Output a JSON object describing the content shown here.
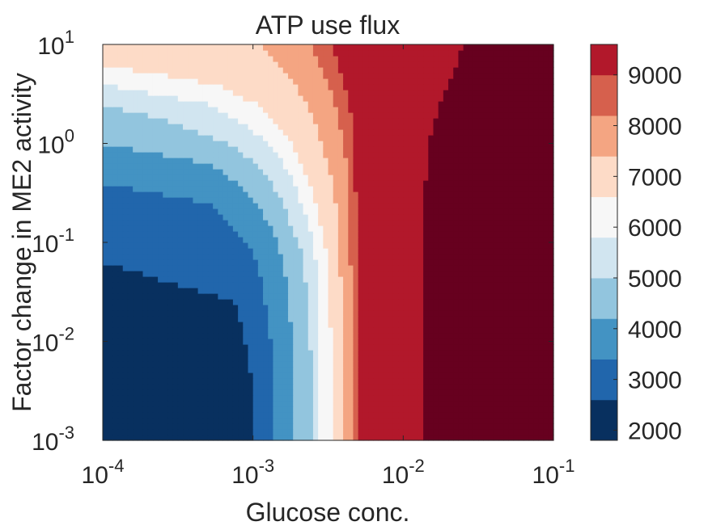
{
  "chart_data": {
    "type": "heatmap",
    "title": "ATP use flux",
    "xlabel": "Glucose conc.",
    "ylabel": "Factor change in ME2 activity",
    "x_scale": "log",
    "y_scale": "log",
    "xlim": [
      0.0001,
      0.1
    ],
    "ylim": [
      0.001,
      10
    ],
    "x_ticks": [
      {
        "value": 0.0001,
        "base": "10",
        "exp": "-4"
      },
      {
        "value": 0.001,
        "base": "10",
        "exp": "-3"
      },
      {
        "value": 0.01,
        "base": "10",
        "exp": "-2"
      },
      {
        "value": 0.1,
        "base": "10",
        "exp": "-1"
      }
    ],
    "y_ticks": [
      {
        "value": 0.001,
        "base": "10",
        "exp": "-3"
      },
      {
        "value": 0.01,
        "base": "10",
        "exp": "-2"
      },
      {
        "value": 0.1,
        "base": "10",
        "exp": "-1"
      },
      {
        "value": 1,
        "base": "10",
        "exp": "0"
      },
      {
        "value": 10,
        "base": "10",
        "exp": "1"
      }
    ],
    "colorbar": {
      "range": [
        1800,
        9600
      ],
      "ticks": [
        "2000",
        "3000",
        "4000",
        "5000",
        "6000",
        "7000",
        "8000",
        "9000"
      ],
      "tick_values": [
        2000,
        3000,
        4000,
        5000,
        6000,
        7000,
        8000,
        9000
      ],
      "levels": [
        {
          "min": 1800,
          "max": 2600,
          "color": "#08305f"
        },
        {
          "min": 2600,
          "max": 3400,
          "color": "#2166ac"
        },
        {
          "min": 3400,
          "max": 4200,
          "color": "#4393c3"
        },
        {
          "min": 4200,
          "max": 5000,
          "color": "#92c5de"
        },
        {
          "min": 5000,
          "max": 5800,
          "color": "#d1e5f0"
        },
        {
          "min": 5800,
          "max": 6600,
          "color": "#f7f7f7"
        },
        {
          "min": 6600,
          "max": 7400,
          "color": "#fddbc7"
        },
        {
          "min": 7400,
          "max": 8200,
          "color": "#f4a582"
        },
        {
          "min": 8200,
          "max": 9000,
          "color": "#d6604d"
        },
        {
          "min": 9000,
          "max": 9600,
          "color": "#b2182b"
        }
      ]
    },
    "level_colors": [
      "#08305f",
      "#2166ac",
      "#4393c3",
      "#92c5de",
      "#d1e5f0",
      "#f7f7f7",
      "#fddbc7",
      "#f4a582",
      "#d6604d",
      "#b2182b",
      "#67001f"
    ],
    "regions_note_levels": "level index 0..10 from dark blue (~2000) to dark red (~9500)",
    "band_boundaries": {
      "description": "Glucose concentration where ATP flux level i ends, as a function of ME2 activity factor (log10 y)",
      "log10_y": [
        -3,
        -2.5,
        -2,
        -1.6,
        -1.2,
        -1.0,
        -0.8,
        -0.6,
        -0.4,
        -0.2,
        0,
        0.2,
        0.4,
        0.6,
        0.8,
        1.0
      ],
      "log10_x_ends": [
        [
          -3.0,
          -3.0,
          -3.05,
          -3.12,
          -4.0,
          -4.0,
          -4.0,
          -4.0,
          -4.0,
          -4.0,
          -4.0,
          -4.0,
          -4.0,
          -4.0,
          -4.0,
          -4.0
        ],
        [
          -2.85,
          -2.85,
          -2.88,
          -2.92,
          -2.97,
          -3.05,
          -3.15,
          -3.3,
          -4.0,
          -4.0,
          -4.0,
          -4.0,
          -4.0,
          -4.0,
          -4.0,
          -4.0
        ],
        [
          -2.72,
          -2.72,
          -2.74,
          -2.76,
          -2.8,
          -2.84,
          -2.9,
          -2.98,
          -3.1,
          -3.3,
          -4.0,
          -4.0,
          -4.0,
          -4.0,
          -4.0,
          -4.0
        ],
        [
          -2.6,
          -2.6,
          -2.62,
          -2.64,
          -2.66,
          -2.7,
          -2.75,
          -2.8,
          -2.88,
          -2.98,
          -3.15,
          -3.5,
          -4.0,
          -4.0,
          -4.0,
          -4.0
        ],
        [
          -2.55,
          -2.55,
          -2.55,
          -2.56,
          -2.58,
          -2.6,
          -2.63,
          -2.68,
          -2.72,
          -2.8,
          -2.9,
          -3.05,
          -3.3,
          -4.0,
          -4.0,
          -4.0
        ],
        [
          -2.48,
          -2.48,
          -2.48,
          -2.49,
          -2.5,
          -2.52,
          -2.55,
          -2.58,
          -2.62,
          -2.68,
          -2.74,
          -2.84,
          -2.98,
          -3.25,
          -4.0,
          -4.0
        ],
        [
          -2.4,
          -2.4,
          -2.4,
          -2.41,
          -2.42,
          -2.43,
          -2.44,
          -2.45,
          -2.47,
          -2.5,
          -2.54,
          -2.58,
          -2.65,
          -2.72,
          -2.82,
          -2.95
        ],
        [
          -2.34,
          -2.34,
          -2.34,
          -2.34,
          -2.35,
          -2.35,
          -2.36,
          -2.36,
          -2.37,
          -2.38,
          -2.4,
          -2.42,
          -2.45,
          -2.5,
          -2.56,
          -2.62
        ],
        [
          -2.3,
          -2.3,
          -2.3,
          -2.3,
          -2.3,
          -2.31,
          -2.31,
          -2.31,
          -2.32,
          -2.32,
          -2.33,
          -2.34,
          -2.36,
          -2.39,
          -2.43,
          -2.48
        ],
        [
          -1.88,
          -1.88,
          -1.88,
          -1.88,
          -1.88,
          -1.87,
          -1.86,
          -1.86,
          -1.85,
          -1.84,
          -1.83,
          -1.8,
          -1.76,
          -1.7,
          -1.64,
          -1.6
        ]
      ]
    }
  }
}
